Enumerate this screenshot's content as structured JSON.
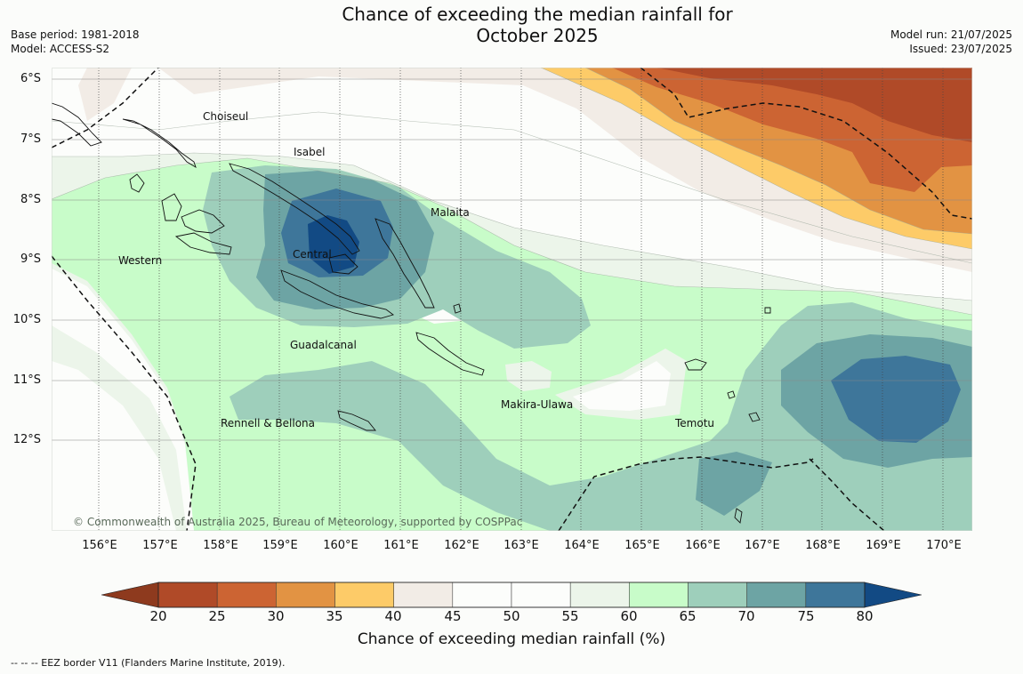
{
  "title_line1": "Chance of exceeding the median rainfall for",
  "title_line2": "October 2025",
  "base_period": "Base period: 1981-2018",
  "model": "Model: ACCESS-S2",
  "model_run": "Model run: 21/07/2025",
  "issued": "Issued: 23/07/2025",
  "latitudes": [
    "6°S",
    "7°S",
    "8°S",
    "9°S",
    "10°S",
    "11°S",
    "12°S"
  ],
  "longitudes": [
    "156°E",
    "157°E",
    "158°E",
    "159°E",
    "160°E",
    "161°E",
    "162°E",
    "163°E",
    "164°E",
    "165°E",
    "166°E",
    "167°E",
    "168°E",
    "169°E",
    "170°E"
  ],
  "places": {
    "choiseul": "Choiseul",
    "isabel": "Isabel",
    "malaita": "Malaita",
    "western": "Western",
    "central": "Central",
    "guadalcanal": "Guadalcanal",
    "rennell": "Rennell & Bellona",
    "makira": "Makira-Ulawa",
    "temotu": "Temotu"
  },
  "copyright": "© Commonwealth of Australia 2025, Bureau of Meteorology, supported by COSPPac",
  "colorbar": {
    "ticks": [
      "20",
      "25",
      "30",
      "35",
      "40",
      "45",
      "50",
      "55",
      "60",
      "65",
      "70",
      "75",
      "80"
    ],
    "colors": [
      "#b04a28",
      "#cc6433",
      "#e29343",
      "#fdcb68",
      "#f2ece6",
      "#fcfdfb",
      "#fcfdfb",
      "#ecf5ea",
      "#c8fcc9",
      "#9ecfbb",
      "#6da4a4",
      "#3e769a"
    ],
    "low_color": "#8e3a1e",
    "high_color": "#124a84",
    "label": "Chance of exceeding median rainfall (%)"
  },
  "footnote": "--  --  -- EEZ border V11 (Flanders Marine Institute, 2019)."
}
